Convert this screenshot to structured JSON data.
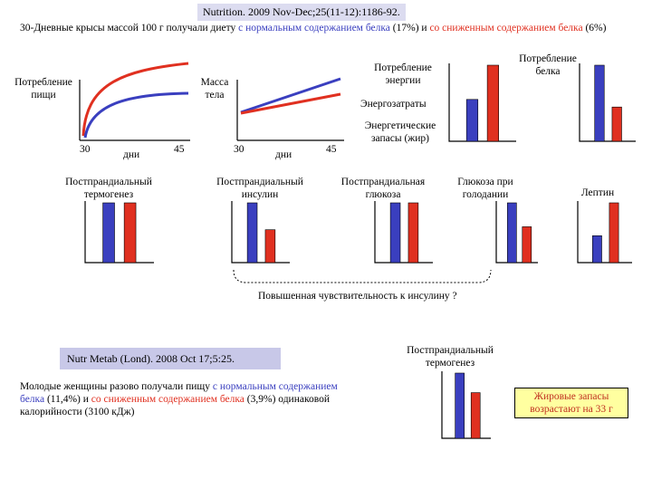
{
  "citation_top": "Nutrition. 2009 Nov-Dec;25(11-12):1186-92.",
  "intro": {
    "p1": "30-Дневные крысы массой 100 г получали диету ",
    "normal": "с нормальным содержанием белка",
    "p2": " (17%) и ",
    "low": "со сниженным содержанием белка",
    "p3": " (6%)"
  },
  "graphs": {
    "food": {
      "label": "Потребление пищи",
      "x_start": "30",
      "x_label": "дни",
      "x_end": "45"
    },
    "mass": {
      "label": "Масса тела",
      "x_start": "30",
      "x_label": "дни",
      "x_end": "45"
    }
  },
  "panels": {
    "energy_intake": "Потребление энергии",
    "energy_expense": "Энергозатраты",
    "energy_stores": "Энергетические запасы (жир)",
    "protein_intake": "Потребление белка",
    "thermo": "Постпрандиальный термогенез",
    "insulin": "Постпрандиальный инсулин",
    "glucose": "Постпрандиальная глюкоза",
    "fasting_glucose": "Глюкоза при голодании",
    "leptin": "Лептин",
    "thermo2": "Постпрандиальный термогенез"
  },
  "insulin_sensitivity": "Повышенная чувствительность к инсулину ?",
  "citation_bottom": "Nutr Metab (Lond). 2008 Oct 17;5:25.",
  "women": {
    "p1": "Молодые женщины разово получали пищу ",
    "normal": "с нормальным содержанием белка",
    "p2": " (11,4%) и ",
    "low": "со сниженным содержанием белка",
    "p3": " (3,9%) одинаковой калорийности (3100 кДж)"
  },
  "fat_stores": "Жировые запасы возрастают на 33 г",
  "colors": {
    "normal_protein": "#3a3fbf",
    "low_protein": "#e03020"
  },
  "bar_groups": {
    "energy_intake": {
      "normal": 0.55,
      "low": 1.0
    },
    "protein_intake": {
      "normal": 1.0,
      "low": 0.45
    },
    "thermo": {
      "normal": 1.0,
      "low": 1.0
    },
    "insulin": {
      "normal": 1.0,
      "low": 0.55
    },
    "glucose": {
      "normal": 1.0,
      "low": 1.0
    },
    "fasting_glucose": {
      "normal": 1.0,
      "low": 0.6
    },
    "leptin": {
      "normal": 0.45,
      "low": 1.0
    },
    "thermo2": {
      "normal": 1.0,
      "low": 0.7
    }
  }
}
